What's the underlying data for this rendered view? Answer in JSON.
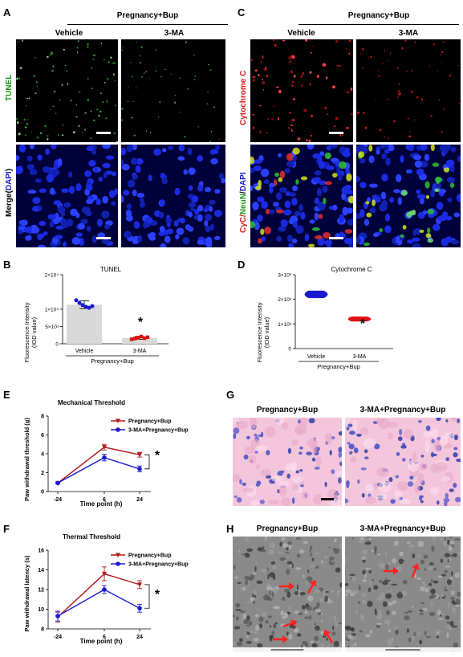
{
  "panels": {
    "A": {
      "letter": "A",
      "group": "Pregnancy+Bup",
      "col1": "Vehicle",
      "col2": "3-MA",
      "row1": "TUNEL",
      "row2_a": "Merge(",
      "row2_b": "DAPI",
      "row2_c": ")"
    },
    "C": {
      "letter": "C",
      "group": "Pregnancy+Bup",
      "col1": "Vehicle",
      "col2": "3-MA",
      "row1": "Cytochrome C",
      "row2_a": "CyC/",
      "row2_b": "NeuN",
      "row2_c": "/",
      "row2_d": "DAPI"
    },
    "B": {
      "letter": "B",
      "title": "TUNEL",
      "ylabel_1": "Fluorescence Intensity",
      "ylabel_2": "(IOD value)",
      "yticks": [
        "0",
        "5×10³",
        "1×10⁴",
        "2×10⁴"
      ],
      "categories": [
        "Vehicle",
        "3-MA"
      ],
      "group": "Pregnancy+Bup",
      "star": "*"
    },
    "D": {
      "letter": "D",
      "title": "Cytochrome C",
      "ylabel_1": "Fluorescence Intensity",
      "ylabel_2": "(IOD value)",
      "yticks": [
        "0",
        "1×10³",
        "2×10³",
        "3×10³"
      ],
      "categories": [
        "Vehicle",
        "3-MA"
      ],
      "group": "Pregnancy+Bup",
      "star": "*"
    },
    "E": {
      "letter": "E",
      "title": "Mechanical Threshold",
      "ylabel": "Paw withdrawal threshold (g)",
      "xlabel": "Time point (h)",
      "yticks": [
        "0",
        "2",
        "4",
        "6",
        "8"
      ],
      "xticks": [
        "-24",
        "6",
        "24"
      ],
      "legend": [
        "Pregnancy+Bup",
        "3-MA+Pregnancy+Bup"
      ],
      "star": "*"
    },
    "F": {
      "letter": "F",
      "title": "Thermal Threshold",
      "ylabel": "Paw withdrawal latency (s)",
      "xlabel": "Time point (h)",
      "yticks": [
        "8",
        "10",
        "12",
        "14",
        "16"
      ],
      "xticks": [
        "-24",
        "6",
        "24"
      ],
      "legend": [
        "Pregnancy+Bup",
        "3-MA+Pregnancy+Bup"
      ],
      "star": "*"
    },
    "G": {
      "letter": "G",
      "col1": "Pregnancy+Bup",
      "col2": "3-MA+Pregnancy+Bup"
    },
    "H": {
      "letter": "H",
      "col1": "Pregnancy+Bup",
      "col2": "3-MA+Pregnancy+Bup"
    }
  },
  "colors": {
    "series1": "#b01818",
    "series2": "#1a1ad0",
    "bar_bg": "#d9d9d9",
    "dots1": "#1a1ad0",
    "dots2": "#e01010",
    "violin1": "#1a1ad0",
    "violin2": "#e01010"
  },
  "chart_data": [
    {
      "id": "B",
      "type": "bar",
      "categories": [
        "Vehicle",
        "3-MA"
      ],
      "values": [
        11300,
        1700
      ],
      "errors": [
        1100,
        400
      ],
      "points": [
        [
          12600,
          11800,
          11200,
          10700,
          10400,
          10900
        ],
        [
          1300,
          1500,
          1800,
          2100,
          1600,
          1900
        ]
      ],
      "ylim": [
        0,
        20000
      ],
      "title": "TUNEL",
      "ylabel": "Fluorescence Intensity (IOD value)"
    },
    {
      "id": "D",
      "type": "violin",
      "categories": [
        "Vehicle",
        "3-MA"
      ],
      "values": [
        2200,
        1200
      ],
      "range": [
        [
          2050,
          2350
        ],
        [
          1100,
          1300
        ]
      ],
      "ylim": [
        0,
        3000
      ],
      "title": "Cytochrome C",
      "ylabel": "Fluorescence Intensity (IOD value)"
    },
    {
      "id": "E",
      "type": "line",
      "x": [
        "-24",
        "6",
        "24"
      ],
      "series": [
        {
          "name": "Pregnancy+Bup",
          "values": [
            0.9,
            4.7,
            3.9
          ],
          "errors": [
            0.05,
            0.3,
            0.25
          ]
        },
        {
          "name": "3-MA+Pregnancy+Bup",
          "values": [
            0.9,
            3.6,
            2.4
          ],
          "errors": [
            0.05,
            0.35,
            0.3
          ]
        }
      ],
      "ylim": [
        0,
        8
      ],
      "title": "Mechanical Threshold",
      "xlabel": "Time point (h)",
      "ylabel": "Paw withdrawal threshold (g)"
    },
    {
      "id": "F",
      "type": "line",
      "x": [
        "-24",
        "6",
        "24"
      ],
      "series": [
        {
          "name": "Pregnancy+Bup",
          "values": [
            9.2,
            13.6,
            12.5
          ],
          "errors": [
            0.5,
            0.7,
            0.4
          ]
        },
        {
          "name": "3-MA+Pregnancy+Bup",
          "values": [
            9.3,
            12.0,
            10.1
          ],
          "errors": [
            0.5,
            0.4,
            0.4
          ]
        }
      ],
      "ylim": [
        8,
        16
      ],
      "title": "Thermal Threshold",
      "xlabel": "Time point (h)",
      "ylabel": "Paw withdrawal latency (s)"
    }
  ]
}
